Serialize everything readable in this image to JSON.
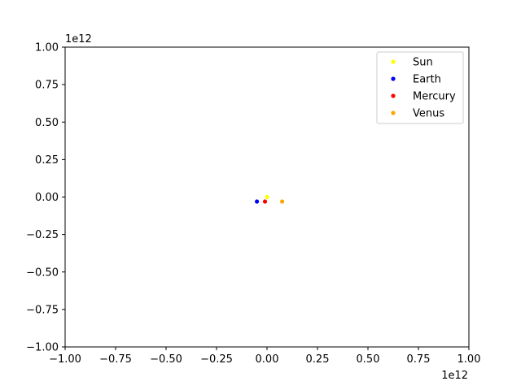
{
  "chart_data": {
    "type": "scatter",
    "title": "",
    "xlabel": "",
    "ylabel": "",
    "x_offset_label": "1e12",
    "y_offset_label": "1e12",
    "xlim": [
      -1.0,
      1.0
    ],
    "ylim": [
      -1.0,
      1.0
    ],
    "x_ticks": [
      -1.0,
      -0.75,
      -0.5,
      -0.25,
      0.0,
      0.25,
      0.5,
      0.75,
      1.0
    ],
    "x_tick_labels": [
      "−1.00",
      "−0.75",
      "−0.50",
      "−0.25",
      "0.00",
      "0.25",
      "0.50",
      "0.75",
      "1.00"
    ],
    "y_ticks": [
      -1.0,
      -0.75,
      -0.5,
      -0.25,
      0.0,
      0.25,
      0.5,
      0.75,
      1.0
    ],
    "y_tick_labels": [
      "−1.00",
      "−0.75",
      "−0.50",
      "−0.25",
      "0.00",
      "0.25",
      "0.50",
      "0.75",
      "1.00"
    ],
    "grid": false,
    "legend_position": "top-right",
    "series": [
      {
        "name": "Sun",
        "color": "#ffff00",
        "x": [
          0.0
        ],
        "y": [
          0.0
        ]
      },
      {
        "name": "Earth",
        "color": "#0000ff",
        "x": [
          -0.05
        ],
        "y": [
          -0.03
        ]
      },
      {
        "name": "Mercury",
        "color": "#ff0000",
        "x": [
          -0.01
        ],
        "y": [
          -0.03
        ]
      },
      {
        "name": "Venus",
        "color": "#ffa500",
        "x": [
          0.075
        ],
        "y": [
          -0.03
        ]
      }
    ]
  }
}
